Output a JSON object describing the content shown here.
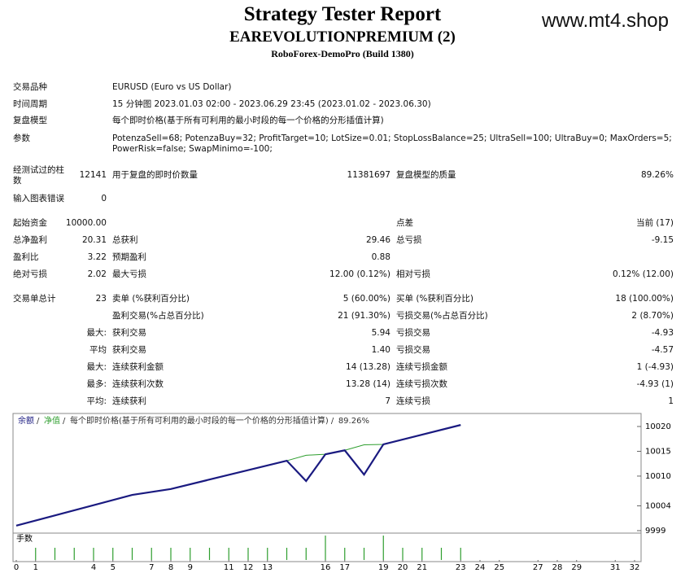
{
  "header": {
    "title": "Strategy Tester Report",
    "subtitle": "EAREVOLUTIONPREMIUM (2)",
    "build": "RoboForex-DemoPro (Build 1380)",
    "watermark": "www.mt4.shop"
  },
  "report": {
    "info": [
      {
        "label": "交易品种",
        "value": "EURUSD (Euro vs US Dollar)"
      },
      {
        "label": "时间周期",
        "value": "15 分钟图 2023.01.03 02:00 - 2023.06.29 23:45 (2023.01.02 - 2023.06.30)"
      },
      {
        "label": "复盘模型",
        "value": "每个即时价格(基于所有可利用的最小时段的每一个价格的分形插值计算)"
      },
      {
        "label": "参数",
        "value": "PotenzaSell=68; PotenzaBuy=32; ProfitTarget=10; LotSize=0.01; StopLossBalance=25; UltraSell=100; UltraBuy=0; MaxOrders=5; PowerRisk=false; SwapMinimo=-100;"
      }
    ],
    "stats": [
      [
        "经测试过的柱数",
        "12141",
        "用于复盘的即时价数量",
        "11381697",
        "复盘模型的质量",
        "89.26%"
      ],
      [
        "输入图表错误",
        "0",
        null,
        null,
        null,
        null
      ],
      [
        "起始资金",
        "10000.00",
        null,
        null,
        "点差",
        "当前 (17)"
      ],
      [
        "总净盈利",
        "20.31",
        "总获利",
        "29.46",
        "总亏损",
        "-9.15"
      ],
      [
        "盈利比",
        "3.22",
        "预期盈利",
        "0.88",
        null,
        null
      ],
      [
        "绝对亏损",
        "2.02",
        "最大亏损",
        "12.00 (0.12%)",
        "相对亏损",
        "0.12% (12.00)"
      ],
      [
        "交易单总计",
        "23",
        "卖单 (%获利百分比)",
        "5 (60.00%)",
        "买单 (%获利百分比)",
        "18 (100.00%)"
      ],
      [
        null,
        null,
        "盈利交易(%占总百分比)",
        "21 (91.30%)",
        "亏损交易(%占总百分比)",
        "2 (8.70%)"
      ],
      [
        null,
        "最大:",
        "获利交易",
        "5.94",
        "亏损交易",
        "-4.93"
      ],
      [
        null,
        "平均",
        "获利交易",
        "1.40",
        "亏损交易",
        "-4.57"
      ],
      [
        null,
        "最大:",
        "连续获利金额",
        "14 (13.28)",
        "连续亏损金额",
        "1 (-4.93)"
      ],
      [
        null,
        "最多:",
        "连续获利次数",
        "13.28 (14)",
        "连续亏损次数",
        "-4.93 (1)"
      ],
      [
        null,
        "平均:",
        "连续获利",
        "7",
        "连续亏损",
        "1"
      ]
    ]
  },
  "chart_data": {
    "type": "line",
    "model": "每个即时价格(基于所有可利用的最小时段的每一个价格的分形插值计算)",
    "quality": "89.26%",
    "xlim": [
      0,
      32
    ],
    "xticks": [
      0,
      1,
      4,
      5,
      7,
      8,
      9,
      11,
      12,
      13,
      16,
      17,
      19,
      20,
      21,
      23,
      24,
      25,
      27,
      28,
      29,
      31,
      32
    ],
    "ylim": [
      9998.5,
      10022.3
    ],
    "yticks": [
      10020,
      10015,
      10010,
      10004,
      9999
    ],
    "series": [
      {
        "name": "净值",
        "color": "#2e9e2e",
        "x": [
          0,
          6,
          8,
          14,
          15,
          16,
          17,
          18,
          19,
          23
        ],
        "values": [
          10000,
          10006.2,
          10007.4,
          10013.1,
          10014.2,
          10014.4,
          10015.2,
          10016.3,
          10016.4,
          10020.31
        ]
      },
      {
        "name": "余额",
        "color": "#1a1a80",
        "x": [
          0,
          6,
          8,
          14,
          15,
          16,
          17,
          18,
          19,
          23
        ],
        "values": [
          10000,
          10006.2,
          10007.4,
          10013.1,
          10009.0,
          10014.4,
          10015.2,
          10010.3,
          10016.4,
          10020.31
        ]
      }
    ],
    "volume": {
      "label": "手数",
      "color": "#2e9e2e",
      "ylim": [
        0,
        0.02
      ],
      "x": [
        1,
        2,
        3,
        4,
        5,
        6,
        7,
        8,
        9,
        10,
        11,
        12,
        13,
        14,
        15,
        16,
        17,
        18,
        19,
        20,
        21,
        22,
        23
      ],
      "values": [
        0.01,
        0.01,
        0.01,
        0.01,
        0.01,
        0.01,
        0.01,
        0.01,
        0.01,
        0.01,
        0.01,
        0.01,
        0.01,
        0.01,
        0.01,
        0.02,
        0.01,
        0.01,
        0.02,
        0.01,
        0.01,
        0.01,
        0.01
      ]
    }
  }
}
